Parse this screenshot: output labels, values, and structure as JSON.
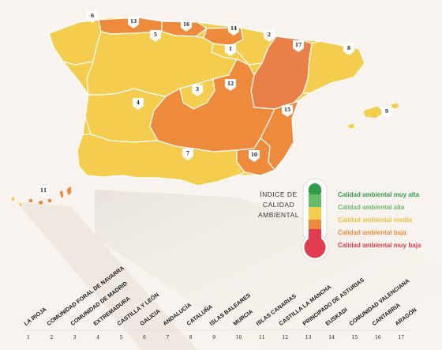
{
  "colors": {
    "muy_alta": "#2e9d4a",
    "alta": "#66bb6a",
    "media": "#f4cc4e",
    "baja": "#ee8a3c",
    "muy_baja": "#e23d4f"
  },
  "legend": {
    "title_lines": [
      "ÍNDICE DE",
      "CALIDAD",
      "AMBIENTAL"
    ],
    "items": [
      {
        "label": "Calidad ambiental muy alta",
        "color": "#2e9d4a"
      },
      {
        "label": "Calidad ambiental alta",
        "color": "#66bb6a"
      },
      {
        "label": "Calidad ambiental media",
        "color": "#e9c23f"
      },
      {
        "label": "Calidad ambiental baja",
        "color": "#ee8a3c"
      },
      {
        "label": "Calidad ambiental muy baja",
        "color": "#e23d4f"
      }
    ]
  },
  "regions": [
    {
      "num": "1",
      "name": "LA RIOJA",
      "quality": "media"
    },
    {
      "num": "2",
      "name": "COMUNIDAD FORAL DE NAVARRA",
      "quality": "media"
    },
    {
      "num": "3",
      "name": "COMUNIDAD DE MADRID",
      "quality": "media"
    },
    {
      "num": "4",
      "name": "EXTREMADURA",
      "quality": "media"
    },
    {
      "num": "5",
      "name": "CASTILLA Y LEÓN",
      "quality": "media"
    },
    {
      "num": "6",
      "name": "GALICIA",
      "quality": "media"
    },
    {
      "num": "7",
      "name": "ANDALUCÍA",
      "quality": "media"
    },
    {
      "num": "8",
      "name": "CATALUÑA",
      "quality": "media"
    },
    {
      "num": "9",
      "name": "ISLAS BALEARES",
      "quality": "media"
    },
    {
      "num": "10",
      "name": "MURCIA",
      "quality": "baja"
    },
    {
      "num": "11",
      "name": "ISLAS CANARIAS",
      "quality": "baja"
    },
    {
      "num": "12",
      "name": "CASTILLA LA MANCHA",
      "quality": "baja"
    },
    {
      "num": "13",
      "name": "PRINCIPADO DE ASTURIAS",
      "quality": "baja"
    },
    {
      "num": "14",
      "name": "EUSKADI",
      "quality": "baja"
    },
    {
      "num": "15",
      "name": "COMUNIDAD VALENCIANA",
      "quality": "baja"
    },
    {
      "num": "16",
      "name": "CANTABRIA",
      "quality": "baja"
    },
    {
      "num": "17",
      "name": "ARAGÓN",
      "quality": "baja"
    }
  ]
}
